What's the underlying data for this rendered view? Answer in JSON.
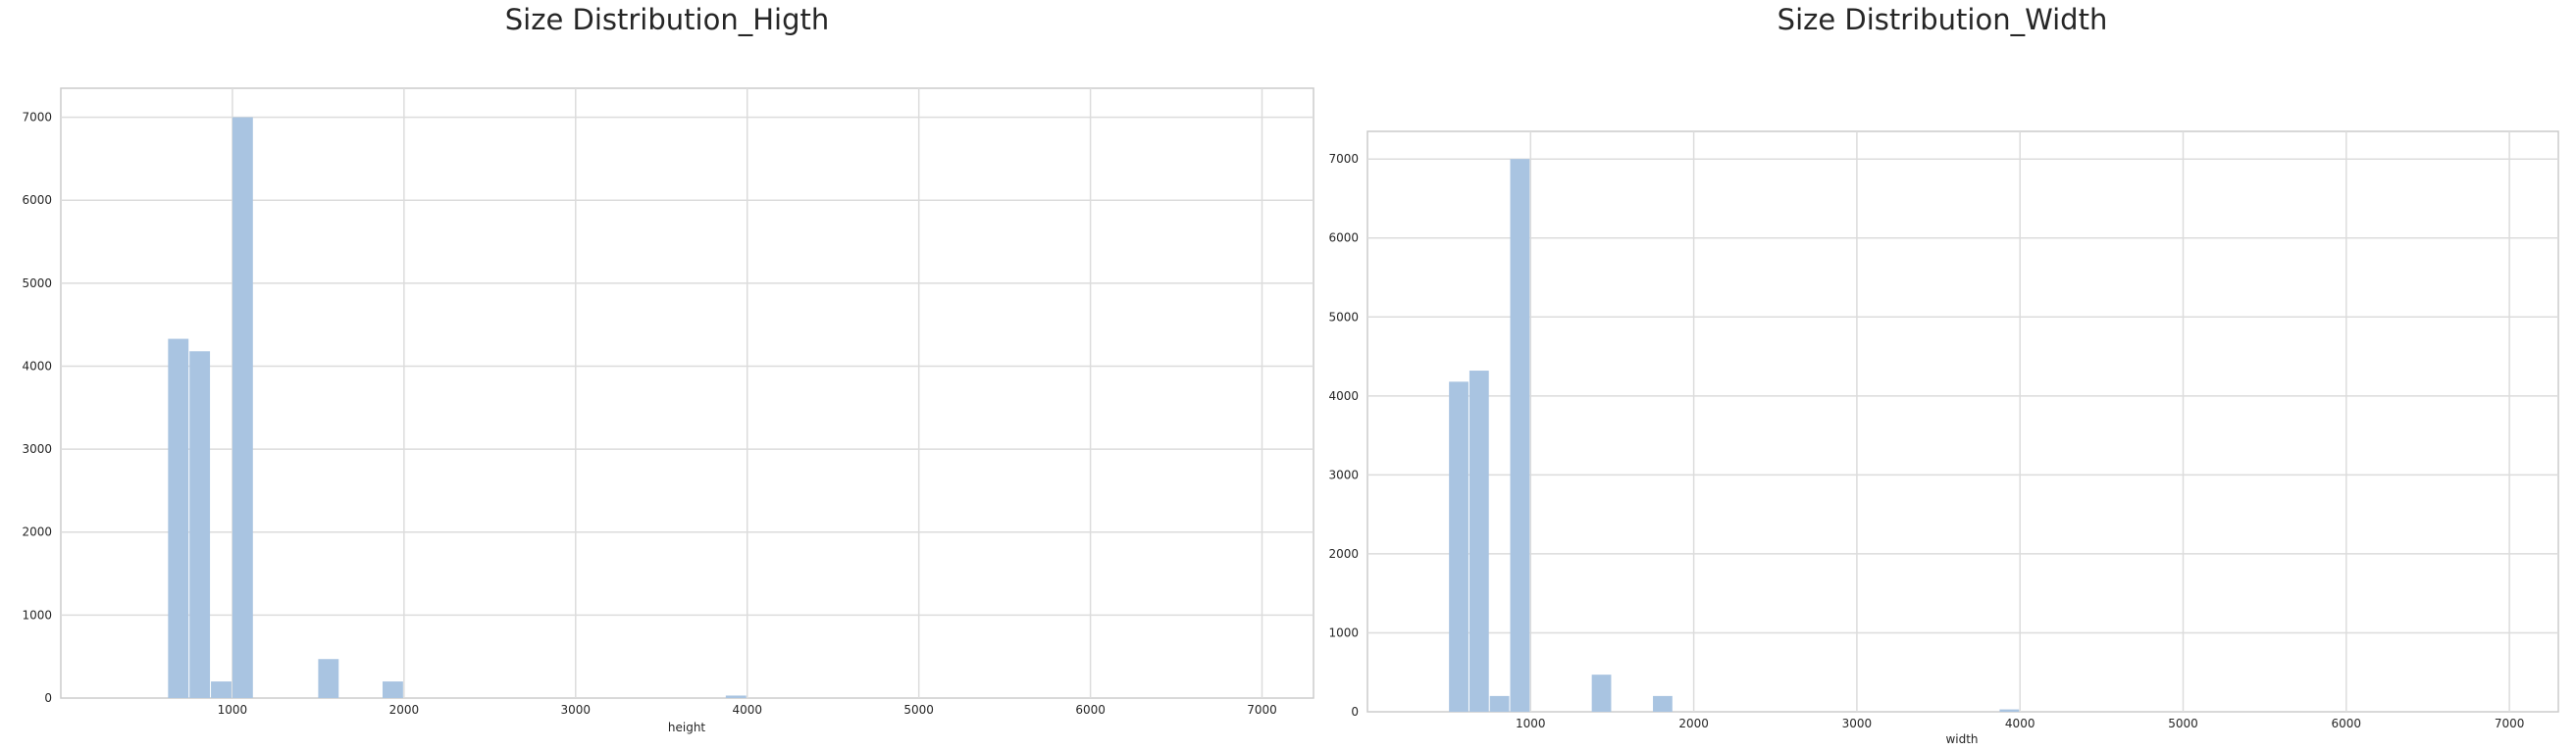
{
  "colors": {
    "bar": "#a9c4e1",
    "grid": "#dcdcdc",
    "frame": "#cccccc",
    "text": "#262626"
  },
  "chart_data": [
    {
      "type": "bar",
      "title": "Size Distribution_Higth",
      "xlabel": "height",
      "ylabel": "",
      "xlim": [
        0,
        7300
      ],
      "ylim": [
        0,
        7350
      ],
      "xticks": [
        1000,
        2000,
        3000,
        4000,
        5000,
        6000,
        7000
      ],
      "yticks": [
        0,
        1000,
        2000,
        3000,
        4000,
        5000,
        6000,
        7000
      ],
      "grid": true,
      "bin_width": 125,
      "bins": [
        {
          "x0": 625,
          "x1": 750,
          "value": 4330
        },
        {
          "x0": 750,
          "x1": 875,
          "value": 4180
        },
        {
          "x0": 875,
          "x1": 1000,
          "value": 200
        },
        {
          "x0": 1000,
          "x1": 1125,
          "value": 7000
        },
        {
          "x0": 1500,
          "x1": 1625,
          "value": 470
        },
        {
          "x0": 1875,
          "x1": 2000,
          "value": 200
        },
        {
          "x0": 3875,
          "x1": 4000,
          "value": 30
        }
      ]
    },
    {
      "type": "bar",
      "title": "Size Distribution_Width",
      "xlabel": "width",
      "ylabel": "",
      "xlim": [
        0,
        7300
      ],
      "ylim": [
        0,
        7350
      ],
      "xticks": [
        1000,
        2000,
        3000,
        4000,
        5000,
        6000,
        7000
      ],
      "yticks": [
        0,
        1000,
        2000,
        3000,
        4000,
        5000,
        6000,
        7000
      ],
      "grid": true,
      "bin_width": 125,
      "bins": [
        {
          "x0": 500,
          "x1": 625,
          "value": 4180
        },
        {
          "x0": 625,
          "x1": 750,
          "value": 4320
        },
        {
          "x0": 750,
          "x1": 875,
          "value": 200
        },
        {
          "x0": 875,
          "x1": 1000,
          "value": 7000
        },
        {
          "x0": 1375,
          "x1": 1500,
          "value": 470
        },
        {
          "x0": 1750,
          "x1": 1875,
          "value": 200
        },
        {
          "x0": 3875,
          "x1": 4000,
          "value": 30
        }
      ]
    }
  ]
}
